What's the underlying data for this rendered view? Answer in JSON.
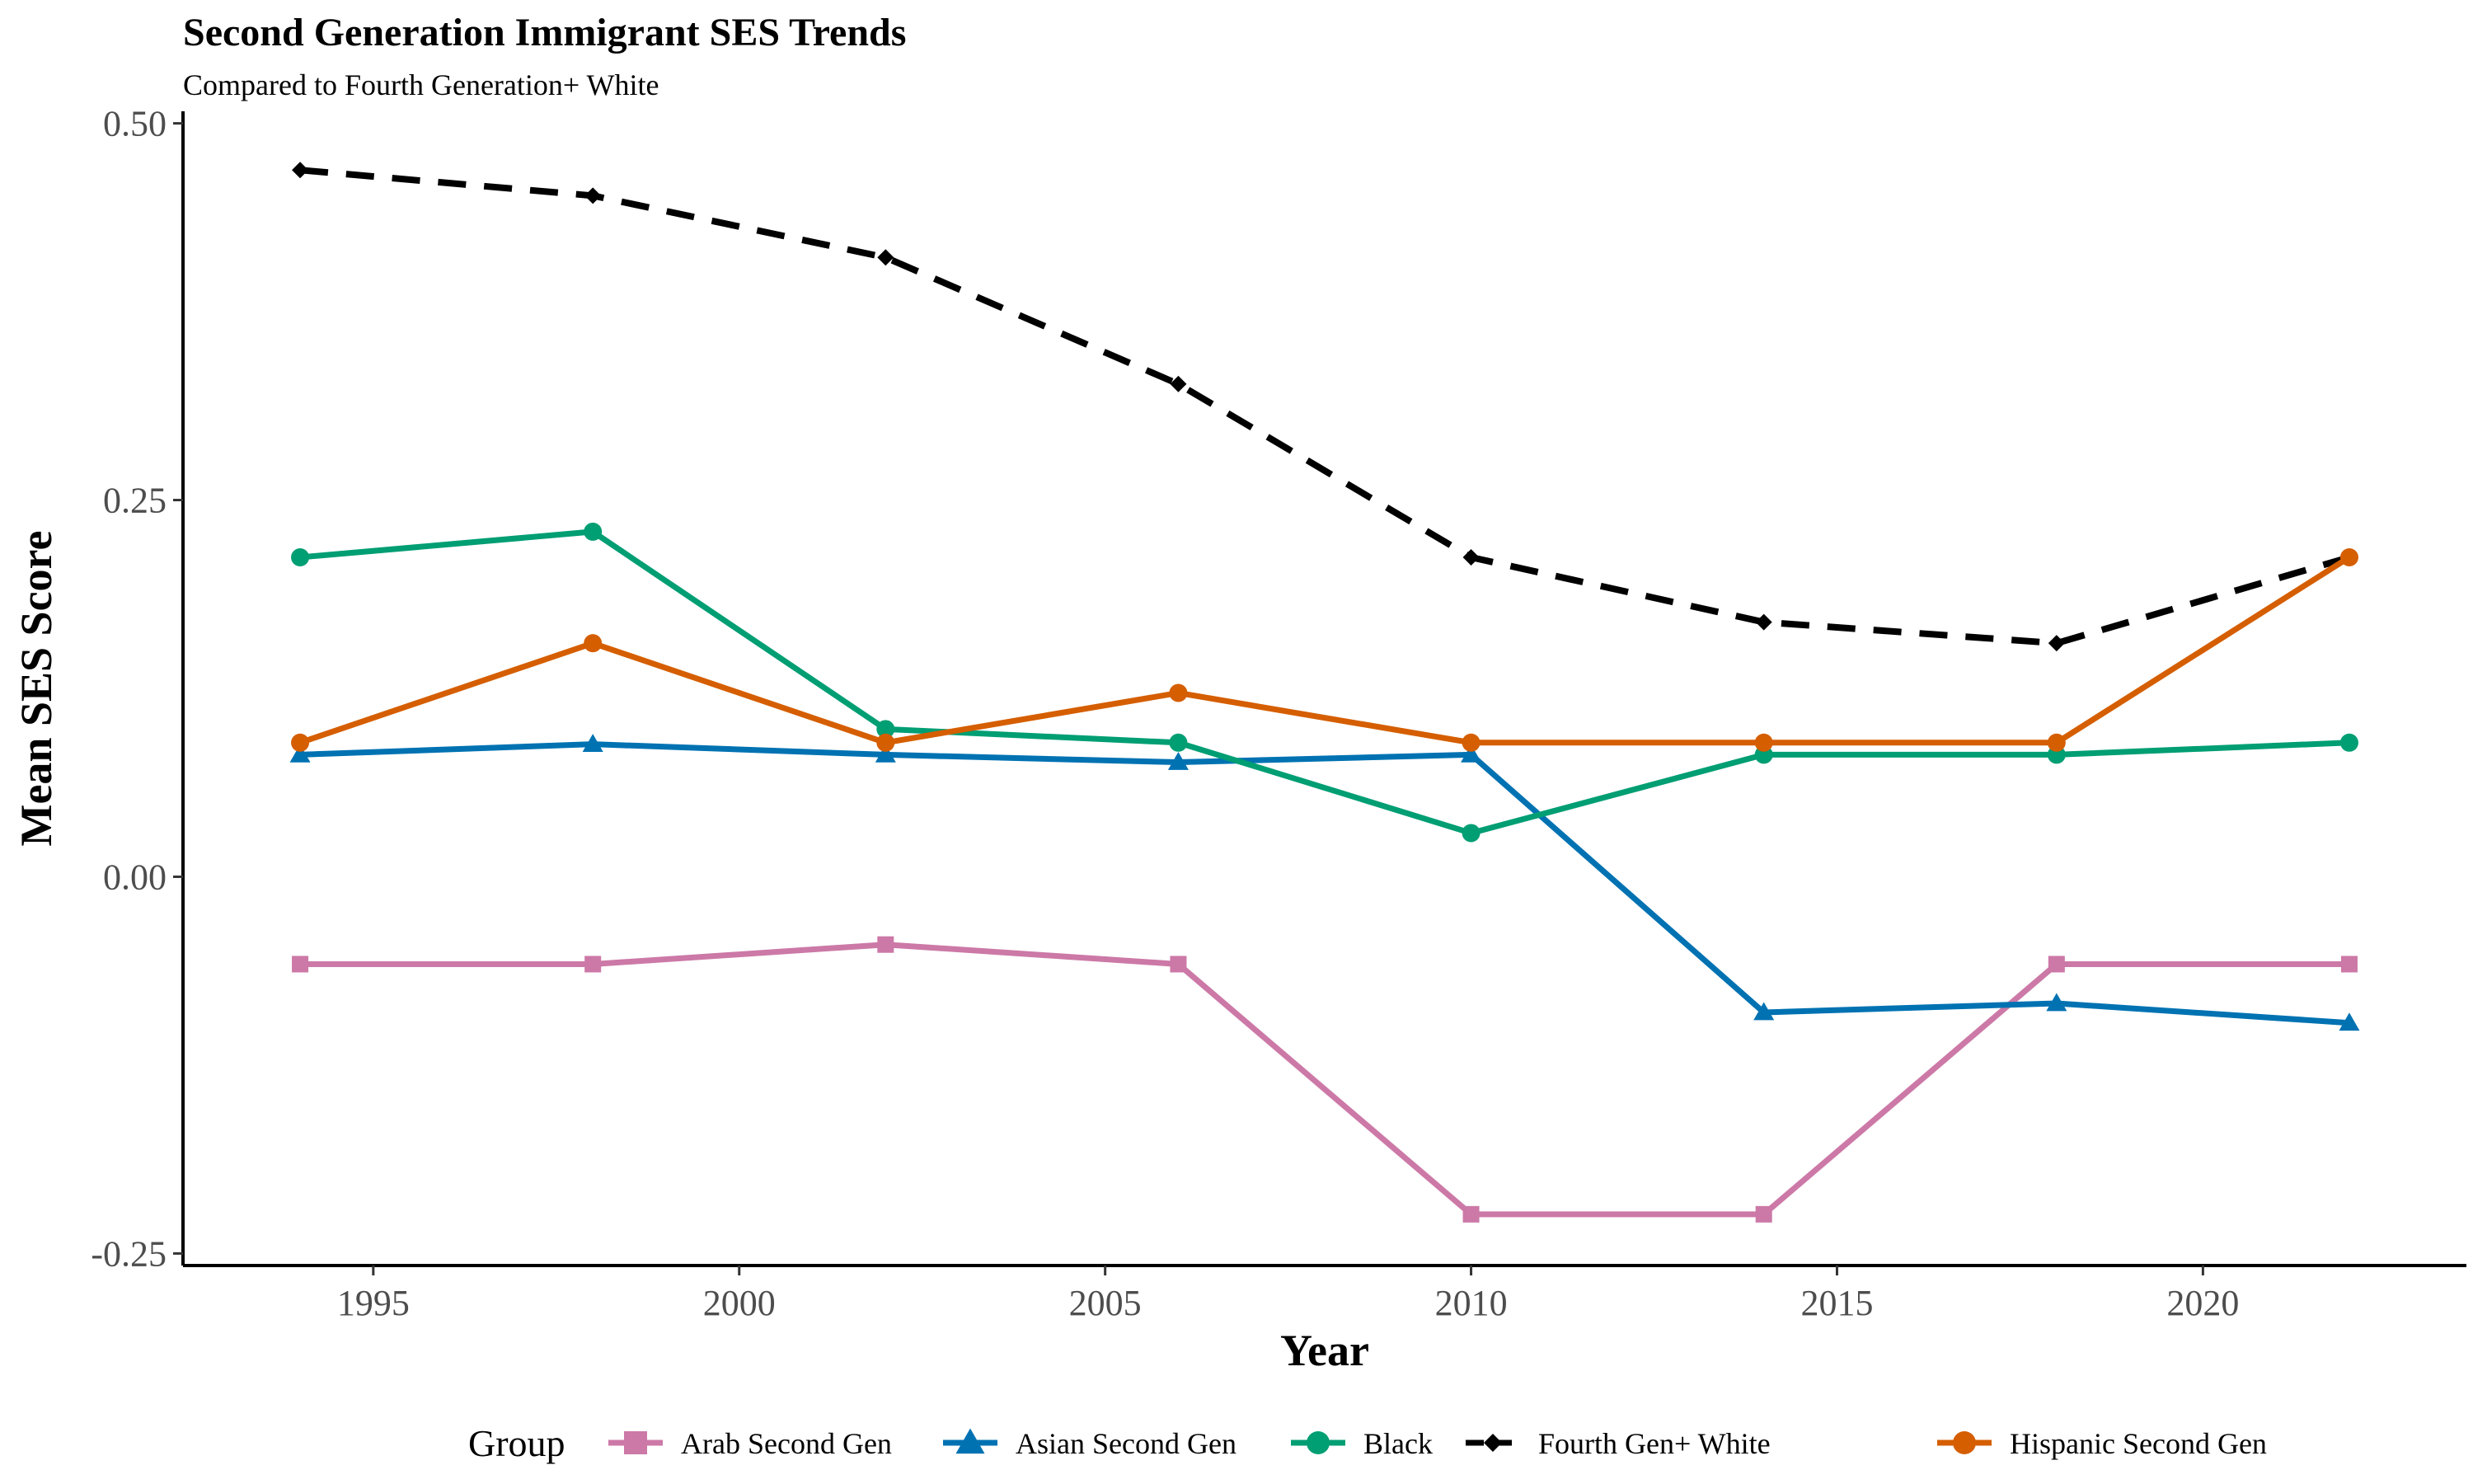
{
  "chart_data": {
    "type": "line",
    "title": "Second Generation Immigrant SES Trends",
    "subtitle": "Compared to Fourth Generation+ White",
    "xlabel": "Year",
    "ylabel": "Mean SES Score",
    "xlim": [
      1992.4,
      2023.6
    ],
    "ylim": [
      -0.258,
      0.508
    ],
    "xticks": [
      1995,
      2000,
      2005,
      2010,
      2015,
      2020
    ],
    "xtick_labels": [
      "1995",
      "2000",
      "2005",
      "2010",
      "2015",
      "2020"
    ],
    "yticks": [
      -0.25,
      0.0,
      0.25,
      0.5
    ],
    "ytick_labels": [
      "-0.25",
      "0.00",
      "0.25",
      "0.50"
    ],
    "grid": false,
    "legend_position": "bottom",
    "legend_title": "Group",
    "x": [
      1994,
      1998,
      2002,
      2006,
      2010,
      2014,
      2018,
      2022
    ],
    "series": [
      {
        "name": "Arab Second Gen",
        "color": "#CC79A7",
        "marker": "square",
        "dash": "solid",
        "values": [
          -0.058,
          -0.058,
          -0.045,
          -0.058,
          -0.224,
          -0.224,
          -0.058,
          -0.058
        ]
      },
      {
        "name": "Asian Second Gen",
        "color": "#0072B2",
        "marker": "triangle",
        "dash": "solid",
        "values": [
          0.081,
          0.088,
          0.081,
          0.076,
          0.081,
          -0.09,
          -0.084,
          -0.097
        ]
      },
      {
        "name": "Black",
        "color": "#009E73",
        "marker": "circle",
        "dash": "solid",
        "values": [
          0.212,
          0.229,
          0.098,
          0.089,
          0.029,
          0.081,
          0.081,
          0.089
        ]
      },
      {
        "name": "Fourth Gen+ White",
        "color": "#000000",
        "marker": "diamond",
        "dash": "dashed",
        "values": [
          0.469,
          0.452,
          0.411,
          0.327,
          0.212,
          0.169,
          0.155,
          0.212
        ]
      },
      {
        "name": "Hispanic Second Gen",
        "color": "#D55E00",
        "marker": "circle",
        "dash": "solid",
        "values": [
          0.089,
          0.155,
          0.089,
          0.122,
          0.089,
          0.089,
          0.089,
          0.212
        ]
      }
    ]
  }
}
